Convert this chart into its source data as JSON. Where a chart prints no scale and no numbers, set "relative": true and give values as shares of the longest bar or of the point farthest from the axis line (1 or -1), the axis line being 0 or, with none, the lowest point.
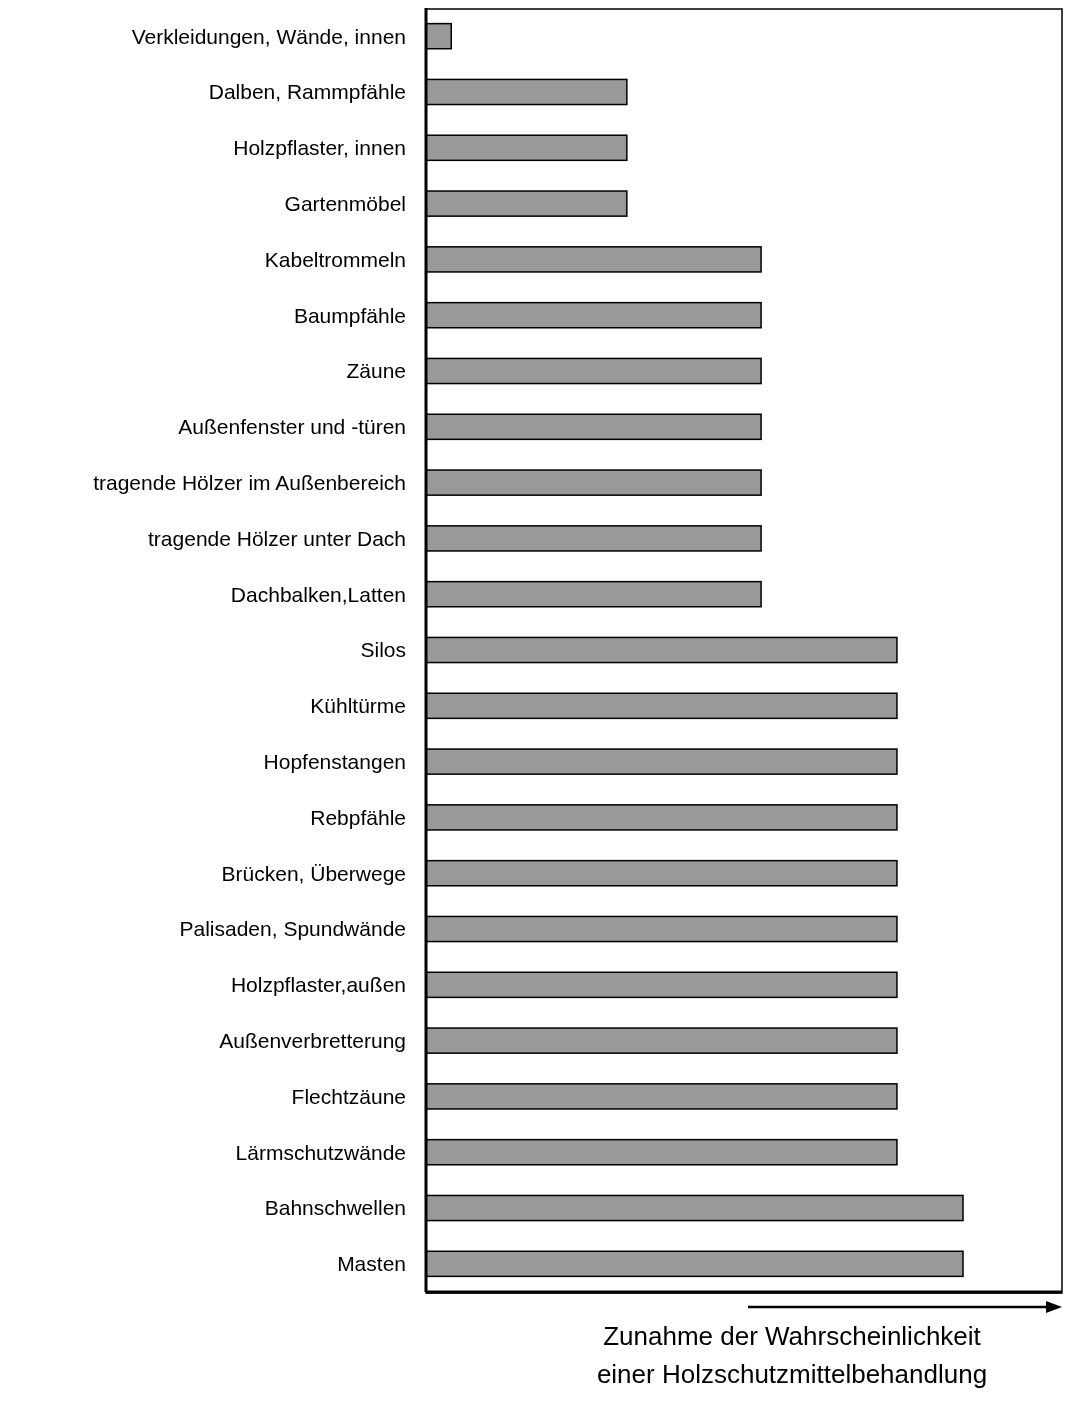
{
  "chart_data": {
    "type": "bar",
    "orientation": "horizontal",
    "relative": true,
    "xlabel": "Zunahme der Wahrscheinlichkeit\neiner Holzschutzmittelbehandlung",
    "color": "#999999",
    "categories": [
      "Verkleidungen, Wände, innen",
      "Dalben, Rammpfähle",
      "Holzpflaster, innen",
      "Gartenmöbel",
      "Kabeltrommeln",
      "Baumpfähle",
      "Zäune",
      "Außenfenster und -türen",
      "tragende Hölzer im Außenbereich",
      "tragende Hölzer unter Dach",
      "Dachbalken,Latten",
      "Silos",
      "Kühltürme",
      "Hopfenstangen",
      "Rebpfähle",
      "Brücken, Überwege",
      "Palisaden, Spundwände",
      "Holzpflaster,außen",
      "Außenverbretterung",
      "Flechtzäune",
      "Lärmschutzwände",
      "Bahnschwellen",
      "Masten"
    ],
    "values": [
      0.047,
      0.374,
      0.374,
      0.374,
      0.624,
      0.624,
      0.624,
      0.624,
      0.624,
      0.624,
      0.624,
      0.877,
      0.877,
      0.877,
      0.877,
      0.877,
      0.877,
      0.877,
      0.877,
      0.877,
      0.877,
      1,
      1
    ]
  }
}
